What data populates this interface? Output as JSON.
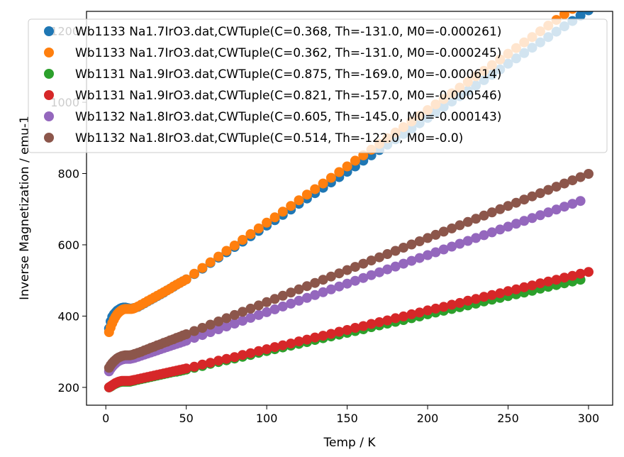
{
  "chart_data": {
    "type": "scatter",
    "xlabel": "Temp / K",
    "ylabel": "Inverse Magnetization  / emu-1",
    "xlim": [
      -12,
      315
    ],
    "ylim": [
      150,
      1255
    ],
    "xticks": [
      0,
      50,
      100,
      150,
      200,
      250,
      300
    ],
    "yticks": [
      200,
      400,
      600,
      800,
      1000,
      1200
    ],
    "grid": false,
    "legend_position": "top-right",
    "series": [
      {
        "name": "Wb1133 Na1.7IrO3.dat,CWTuple(C=0.368, Th=-131.0, M0=-0.000261)",
        "color": "#1f77b4",
        "x": [
          2,
          3,
          4,
          5,
          6,
          7,
          8,
          9,
          10,
          11,
          12,
          13,
          14,
          15,
          16,
          17,
          18,
          20,
          22,
          24,
          26,
          28,
          30,
          32,
          34,
          36,
          38,
          40,
          42,
          44,
          46,
          48,
          50,
          55,
          60,
          65,
          70,
          75,
          80,
          85,
          90,
          95,
          100,
          105,
          110,
          115,
          120,
          125,
          130,
          135,
          140,
          145,
          150,
          155,
          160,
          165,
          170,
          175,
          180,
          185,
          190,
          195,
          200,
          205,
          210,
          215,
          220,
          225,
          230,
          235,
          240,
          245,
          250,
          255,
          260,
          265,
          270,
          275,
          280,
          285,
          290,
          295,
          300
        ],
        "y": [
          365,
          385,
          398,
          405,
          410,
          415,
          418,
          421,
          423,
          424,
          424,
          423,
          422,
          421,
          421,
          422,
          423,
          426,
          431,
          436,
          441,
          446,
          451,
          456,
          461,
          466,
          472,
          477,
          482,
          488,
          493,
          498,
          503,
          518,
          533,
          549,
          564,
          579,
          594,
          609,
          624,
          639,
          654,
          669,
          684,
          699,
          715,
          730,
          745,
          760,
          775,
          790,
          805,
          820,
          836,
          851,
          866,
          881,
          896,
          911,
          926,
          941,
          956,
          972,
          987,
          1002,
          1017,
          1032,
          1047,
          1062,
          1077,
          1092,
          1108,
          1123,
          1138,
          1153,
          1168,
          1183,
          1198,
          1213,
          1228,
          1243,
          1258
        ]
      },
      {
        "name": "Wb1133 Na1.7IrO3.dat,CWTuple(C=0.362, Th=-131.0, M0=-0.000245)",
        "color": "#ff7f0e",
        "x": [
          2,
          3,
          4,
          5,
          6,
          7,
          8,
          9,
          10,
          11,
          12,
          13,
          14,
          15,
          16,
          17,
          18,
          20,
          22,
          24,
          26,
          28,
          30,
          32,
          34,
          36,
          38,
          40,
          42,
          44,
          46,
          48,
          50,
          55,
          60,
          65,
          70,
          75,
          80,
          85,
          90,
          95,
          100,
          105,
          110,
          115,
          120,
          125,
          130,
          135,
          140,
          145,
          150,
          155,
          160,
          165,
          170,
          175,
          180,
          185,
          190,
          195,
          200,
          205,
          210,
          215,
          220,
          225,
          230,
          235,
          240,
          245,
          250,
          255,
          260,
          265,
          270,
          275,
          280,
          285,
          290,
          295,
          300
        ],
        "y": [
          355,
          368,
          380,
          390,
          398,
          405,
          410,
          414,
          417,
          419,
          420,
          420,
          420,
          420,
          420,
          421,
          423,
          427,
          432,
          437,
          442,
          447,
          452,
          457,
          462,
          467,
          472,
          477,
          483,
          488,
          493,
          498,
          503,
          519,
          535,
          551,
          567,
          583,
          598,
          614,
          630,
          646,
          662,
          677,
          693,
          709,
          725,
          741,
          756,
          772,
          788,
          804,
          820,
          836,
          851,
          867,
          883,
          899,
          915,
          930,
          946,
          962,
          978,
          994,
          1009,
          1025,
          1041,
          1057,
          1073,
          1088,
          1104,
          1120,
          1136,
          1152,
          1168,
          1183,
          1199,
          1215,
          1231,
          1247,
          1262,
          1278,
          1294
        ]
      },
      {
        "name": "Wb1131 Na1.9IrO3.dat,CWTuple(C=0.875, Th=-169.0, M0=-0.000614)",
        "color": "#2ca02c",
        "x": [
          2,
          3,
          4,
          5,
          6,
          7,
          8,
          9,
          10,
          11,
          12,
          13,
          14,
          15,
          16,
          17,
          18,
          20,
          22,
          24,
          26,
          28,
          30,
          32,
          34,
          36,
          38,
          40,
          42,
          44,
          46,
          48,
          50,
          55,
          60,
          65,
          70,
          75,
          80,
          85,
          90,
          95,
          100,
          105,
          110,
          115,
          120,
          125,
          130,
          135,
          140,
          145,
          150,
          155,
          160,
          165,
          170,
          175,
          180,
          185,
          190,
          195,
          200,
          205,
          210,
          215,
          220,
          225,
          230,
          235,
          240,
          245,
          250,
          255,
          260,
          265,
          270,
          275,
          280,
          285,
          290,
          295
        ],
        "y": [
          200,
          202,
          205,
          208,
          210,
          212,
          214,
          215,
          216,
          216,
          216,
          216,
          216,
          216,
          217,
          218,
          219,
          221,
          223,
          225,
          227,
          229,
          231,
          233,
          235,
          237,
          239,
          241,
          243,
          244,
          246,
          248,
          250,
          255,
          260,
          266,
          271,
          276,
          281,
          286,
          291,
          297,
          302,
          307,
          312,
          317,
          322,
          327,
          333,
          338,
          343,
          348,
          353,
          358,
          363,
          369,
          374,
          379,
          384,
          389,
          394,
          399,
          405,
          410,
          415,
          420,
          425,
          430,
          435,
          441,
          446,
          451,
          456,
          461,
          466,
          471,
          477,
          482,
          487,
          492,
          497,
          502
        ]
      },
      {
        "name": "Wb1131 Na1.9IrO3.dat,CWTuple(C=0.821, Th=-157.0, M0=-0.000546)",
        "color": "#d62728",
        "x": [
          2,
          3,
          4,
          5,
          6,
          7,
          8,
          9,
          10,
          11,
          12,
          13,
          14,
          15,
          16,
          17,
          18,
          20,
          22,
          24,
          26,
          28,
          30,
          32,
          34,
          36,
          38,
          40,
          42,
          44,
          46,
          48,
          50,
          55,
          60,
          65,
          70,
          75,
          80,
          85,
          90,
          95,
          100,
          105,
          110,
          115,
          120,
          125,
          130,
          135,
          140,
          145,
          150,
          155,
          160,
          165,
          170,
          175,
          180,
          185,
          190,
          195,
          200,
          205,
          210,
          215,
          220,
          225,
          230,
          235,
          240,
          245,
          250,
          255,
          260,
          265,
          270,
          275,
          280,
          285,
          290,
          295,
          300
        ],
        "y": [
          200,
          203,
          206,
          209,
          212,
          214,
          216,
          217,
          218,
          218,
          218,
          218,
          218,
          218,
          219,
          220,
          221,
          223,
          225,
          227,
          229,
          231,
          233,
          235,
          237,
          239,
          241,
          243,
          245,
          247,
          249,
          251,
          253,
          258,
          264,
          269,
          275,
          280,
          285,
          291,
          296,
          302,
          307,
          313,
          318,
          323,
          329,
          334,
          340,
          345,
          350,
          356,
          361,
          367,
          372,
          378,
          383,
          388,
          394,
          399,
          405,
          410,
          416,
          421,
          426,
          432,
          437,
          443,
          448,
          454,
          459,
          464,
          470,
          475,
          481,
          486,
          492,
          497,
          502,
          508,
          513,
          519,
          524
        ]
      },
      {
        "name": "Wb1132 Na1.8IrO3.dat,CWTuple(C=0.605, Th=-145.0, M0=-0.000143)",
        "color": "#9467bd",
        "x": [
          2,
          3,
          4,
          5,
          6,
          7,
          8,
          9,
          10,
          11,
          12,
          13,
          14,
          15,
          16,
          17,
          18,
          20,
          22,
          24,
          26,
          28,
          30,
          32,
          34,
          36,
          38,
          40,
          42,
          44,
          46,
          48,
          50,
          55,
          60,
          65,
          70,
          75,
          80,
          85,
          90,
          95,
          100,
          105,
          110,
          115,
          120,
          125,
          130,
          135,
          140,
          145,
          150,
          155,
          160,
          165,
          170,
          175,
          180,
          185,
          190,
          195,
          200,
          205,
          210,
          215,
          220,
          225,
          230,
          235,
          240,
          245,
          250,
          255,
          260,
          265,
          270,
          275,
          280,
          285,
          290,
          295
        ],
        "y": [
          245,
          252,
          258,
          263,
          267,
          271,
          274,
          276,
          278,
          279,
          280,
          280,
          280,
          280,
          281,
          282,
          283,
          286,
          289,
          292,
          295,
          298,
          301,
          304,
          307,
          310,
          313,
          316,
          319,
          322,
          325,
          328,
          331,
          339,
          347,
          355,
          363,
          371,
          379,
          387,
          395,
          403,
          411,
          419,
          427,
          435,
          443,
          451,
          459,
          467,
          475,
          483,
          491,
          499,
          507,
          515,
          523,
          531,
          539,
          547,
          555,
          563,
          571,
          579,
          587,
          595,
          603,
          611,
          619,
          627,
          635,
          643,
          651,
          659,
          667,
          675,
          683,
          691,
          699,
          707,
          715,
          723
        ]
      },
      {
        "name": "Wb1132 Na1.8IrO3.dat,CWTuple(C=0.514, Th=-122.0, M0=-0.0)",
        "color": "#8c564b",
        "x": [
          2,
          3,
          4,
          5,
          6,
          7,
          8,
          9,
          10,
          11,
          12,
          13,
          14,
          15,
          16,
          17,
          18,
          20,
          22,
          24,
          26,
          28,
          30,
          32,
          34,
          36,
          38,
          40,
          42,
          44,
          46,
          48,
          50,
          55,
          60,
          65,
          70,
          75,
          80,
          85,
          90,
          95,
          100,
          105,
          110,
          115,
          120,
          125,
          130,
          135,
          140,
          145,
          150,
          155,
          160,
          165,
          170,
          175,
          180,
          185,
          190,
          195,
          200,
          205,
          210,
          215,
          220,
          225,
          230,
          235,
          240,
          245,
          250,
          255,
          260,
          265,
          270,
          275,
          280,
          285,
          290,
          295,
          300
        ],
        "y": [
          255,
          262,
          268,
          273,
          277,
          281,
          284,
          286,
          288,
          289,
          290,
          290,
          290,
          290,
          291,
          292,
          294,
          297,
          300,
          304,
          307,
          311,
          314,
          318,
          321,
          325,
          328,
          332,
          335,
          339,
          342,
          346,
          349,
          358,
          367,
          376,
          385,
          394,
          403,
          412,
          421,
          430,
          439,
          448,
          457,
          466,
          475,
          484,
          493,
          502,
          511,
          520,
          529,
          538,
          547,
          556,
          565,
          574,
          583,
          592,
          601,
          610,
          619,
          628,
          637,
          646,
          655,
          664,
          673,
          682,
          691,
          700,
          709,
          718,
          727,
          736,
          745,
          754,
          763,
          772,
          781,
          790,
          799
        ]
      }
    ]
  }
}
